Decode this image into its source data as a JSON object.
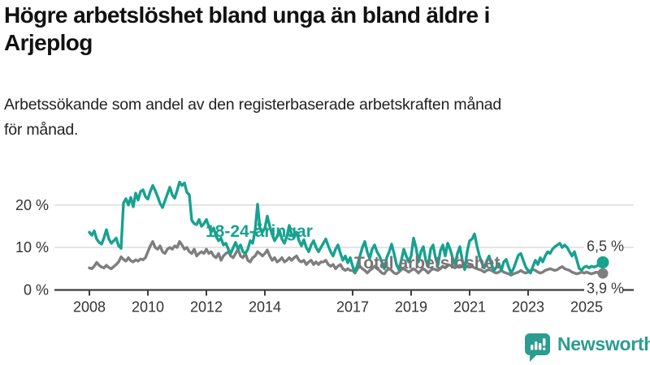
{
  "header": {
    "title_lines": [
      "Högre arbetslöshet bland unga än bland äldre i",
      "Arjeplog"
    ],
    "title_full": "Högre arbetslöshet bland unga än bland äldre i Arjeplog",
    "subtitle_lines": [
      "Arbetssökande som andel av den registerbaserade arbetskraften månad",
      "för månad."
    ],
    "subtitle_full": "Arbetssökande som andel av den registerbaserade arbetskraften månad för månad."
  },
  "chart_data": {
    "type": "line",
    "unit": "%",
    "x_start": "2008-01",
    "x_end": "2025-07",
    "x_tick_years": [
      2008,
      2010,
      2012,
      2014,
      2017,
      2019,
      2021,
      2023,
      2025
    ],
    "x_tick_labels": [
      "2008",
      "2010",
      "2012",
      "2014",
      "2017",
      "2019",
      "2021",
      "2023",
      "2025"
    ],
    "y_ticks": [
      0,
      10,
      20
    ],
    "y_tick_labels": [
      "0 %",
      "10 %",
      "20 %"
    ],
    "ylim": [
      0,
      27
    ],
    "grid": "horizontal",
    "legend_position": "inline-labels",
    "colors": {
      "accent_teal": "#16a28f",
      "neutral_gray": "#7e7e7e",
      "axis_text": "#333333",
      "gridline": "#dcdcdc",
      "axis_line": "#3d3d3d"
    },
    "series": [
      {
        "name": "18-24-åringar",
        "color": "#16a28f",
        "label_color": "#16a28f",
        "end_label": "6,5 %",
        "end_value": 6.5,
        "values": [
          13.6,
          12.9,
          13.9,
          12.0,
          11.2,
          10.8,
          12.3,
          14.2,
          12.0,
          11.0,
          11.6,
          12.2,
          10.4,
          9.8,
          20.5,
          21.5,
          20.0,
          21.8,
          19.6,
          22.8,
          21.2,
          23.2,
          23.6,
          22.0,
          21.4,
          23.2,
          24.6,
          23.4,
          22.0,
          20.4,
          19.4,
          21.0,
          22.6,
          24.2,
          22.4,
          21.6,
          23.4,
          25.4,
          24.6,
          25.2,
          23.0,
          22.4,
          16.4,
          15.6,
          15.4,
          16.6,
          15.0,
          15.6,
          16.6,
          15.0,
          13.6,
          14.6,
          12.6,
          11.6,
          12.2,
          10.6,
          11.0,
          9.6,
          8.6,
          10.0,
          11.2,
          9.6,
          10.6,
          9.0,
          8.6,
          9.6,
          11.6,
          11.0,
          14.0,
          20.2,
          14.4,
          13.6,
          14.6,
          17.4,
          15.0,
          13.0,
          11.6,
          12.6,
          14.0,
          12.0,
          11.0,
          12.6,
          15.2,
          13.0,
          12.4,
          13.6,
          11.6,
          10.4,
          11.8,
          10.0,
          9.0,
          10.6,
          11.6,
          10.0,
          9.0,
          10.0,
          11.0,
          12.0,
          10.4,
          9.0,
          8.0,
          9.6,
          10.6,
          8.6,
          7.0,
          8.0,
          6.4,
          7.6,
          5.6,
          4.2,
          6.0,
          8.0,
          10.0,
          11.4,
          9.0,
          7.4,
          9.6,
          10.6,
          9.0,
          8.0,
          6.6,
          5.0,
          7.6,
          9.0,
          10.8,
          8.6,
          6.0,
          4.8,
          7.0,
          9.6,
          8.0,
          6.6,
          8.0,
          12.2,
          10.0,
          6.6,
          9.0,
          10.2,
          7.0,
          5.6,
          9.6,
          10.6,
          7.6,
          5.8,
          9.2,
          10.6,
          8.0,
          11.0,
          9.6,
          7.6,
          6.0,
          8.6,
          10.2,
          7.0,
          4.8,
          9.0,
          11.6,
          12.0,
          13.2,
          10.4,
          8.0,
          6.4,
          5.2,
          6.8,
          8.0,
          6.0,
          4.6,
          5.4,
          6.2,
          4.6,
          6.6,
          7.2,
          5.4,
          4.0,
          5.0,
          6.6,
          8.2,
          8.6,
          7.0,
          5.4,
          4.6,
          4.0,
          5.6,
          7.0,
          6.0,
          7.6,
          6.6,
          8.0,
          9.0,
          8.6,
          9.6,
          10.2,
          10.6,
          11.0,
          10.0,
          10.6,
          10.0,
          9.0,
          8.0,
          9.0,
          7.0,
          5.0,
          4.7,
          5.4,
          5.6,
          5.2,
          5.6,
          5.4,
          5.6,
          6.0,
          6.5
        ]
      },
      {
        "name": "Total arbetslöshet",
        "color": "#7e7e7e",
        "label_color": "#757575",
        "end_label": "3,9 %",
        "end_value": 3.9,
        "values": [
          5.2,
          5.0,
          5.6,
          6.5,
          5.8,
          5.4,
          5.2,
          5.8,
          5.3,
          5.0,
          5.5,
          6.0,
          6.6,
          7.8,
          7.2,
          6.8,
          7.6,
          6.9,
          6.6,
          7.1,
          6.8,
          7.3,
          7.1,
          7.6,
          9.0,
          10.4,
          11.4,
          10.0,
          9.6,
          10.4,
          9.0,
          8.6,
          9.6,
          10.0,
          9.6,
          10.4,
          10.0,
          11.4,
          10.6,
          9.6,
          10.0,
          9.0,
          8.6,
          9.6,
          8.0,
          8.6,
          9.0,
          8.6,
          9.6,
          8.6,
          9.0,
          8.0,
          7.6,
          8.6,
          7.0,
          8.0,
          8.6,
          9.0,
          8.0,
          7.6,
          8.6,
          9.6,
          8.0,
          7.6,
          8.6,
          7.0,
          6.6,
          7.6,
          8.0,
          9.0,
          8.6,
          8.0,
          8.6,
          9.4,
          8.0,
          7.0,
          7.6,
          6.6,
          7.0,
          7.6,
          6.6,
          7.0,
          7.6,
          7.0,
          7.6,
          8.0,
          7.0,
          6.6,
          7.0,
          6.0,
          6.6,
          7.0,
          6.0,
          6.6,
          6.0,
          6.6,
          6.6,
          7.0,
          6.0,
          5.6,
          6.0,
          5.0,
          5.6,
          6.0,
          5.0,
          4.6,
          5.0,
          4.6,
          4.6,
          4.0,
          5.0,
          5.6,
          5.0,
          4.6,
          4.0,
          4.6,
          5.0,
          5.6,
          5.0,
          4.6,
          4.0,
          3.8,
          4.6,
          5.0,
          4.6,
          4.0,
          3.8,
          4.2,
          4.8,
          5.0,
          4.6,
          4.2,
          4.6,
          5.0,
          4.6,
          4.0,
          4.6,
          5.0,
          4.6,
          4.0,
          4.6,
          5.0,
          4.8,
          4.6,
          5.0,
          5.6,
          5.2,
          6.0,
          5.8,
          5.6,
          5.2,
          5.6,
          5.8,
          5.6,
          5.2,
          5.6,
          5.8,
          5.6,
          5.2,
          5.0,
          4.8,
          4.6,
          4.2,
          4.6,
          4.8,
          4.6,
          4.2,
          4.0,
          4.2,
          4.6,
          4.2,
          4.0,
          3.8,
          3.5,
          3.8,
          4.0,
          4.2,
          4.6,
          4.2,
          4.0,
          4.2,
          4.6,
          4.8,
          4.6,
          4.2,
          4.0,
          4.2,
          4.6,
          4.8,
          5.0,
          4.8,
          4.6,
          4.8,
          5.2,
          5.5,
          5.0,
          4.8,
          4.6,
          4.2,
          4.0,
          3.8,
          4.0,
          4.2,
          4.0,
          4.2,
          4.0,
          3.8,
          4.0,
          4.2,
          4.0,
          3.9
        ]
      }
    ]
  },
  "footer": {
    "brand": "Newsworthy",
    "brand_color": "#2a9d8f",
    "logo_icon": "bar-chart-speech-bubble"
  }
}
